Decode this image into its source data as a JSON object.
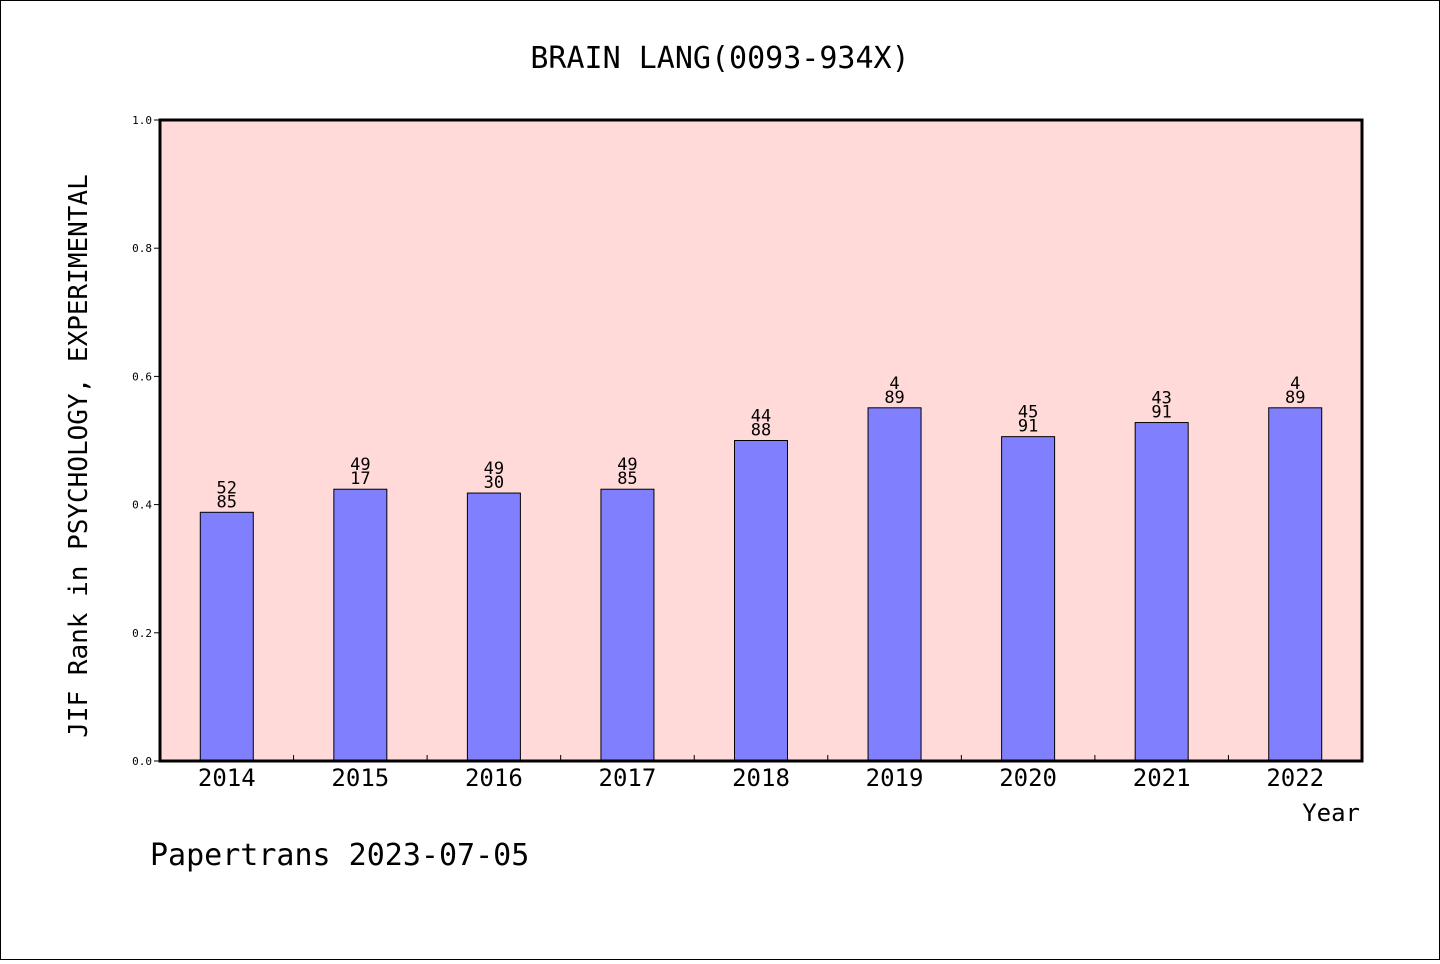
{
  "chart_data": {
    "type": "bar",
    "title": "BRAIN LANG(0093-934X)",
    "xlabel": "Year",
    "ylabel": "JIF Rank in PSYCHOLOGY, EXPERIMENTAL",
    "categories": [
      "2014",
      "2015",
      "2016",
      "2017",
      "2018",
      "2019",
      "2020",
      "2021",
      "2022"
    ],
    "values": [
      0.388,
      0.424,
      0.418,
      0.424,
      0.5,
      0.551,
      0.506,
      0.528,
      0.551
    ],
    "bar_labels": [
      [
        "52",
        "85"
      ],
      [
        "49",
        "17"
      ],
      [
        "49",
        "30"
      ],
      [
        "49",
        "85"
      ],
      [
        "44",
        "88"
      ],
      [
        "4",
        "89"
      ],
      [
        "45",
        "91"
      ],
      [
        "43",
        "91"
      ],
      [
        "4",
        "89"
      ]
    ],
    "ylim": [
      0,
      1
    ],
    "yticks": [
      "0.0",
      "0.2",
      "0.4",
      "0.6",
      "0.8",
      "1.0"
    ],
    "grid": false,
    "colors": {
      "plot_background": "#ffdad8",
      "bar_fill": "#8080ff",
      "bar_stroke": "#000000"
    }
  },
  "footer": "Papertrans 2023-07-05"
}
